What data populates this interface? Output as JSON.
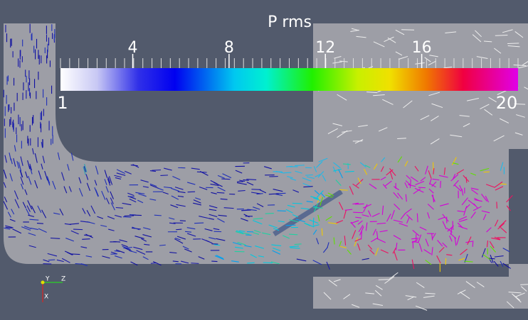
{
  "colorbar": {
    "title": "P rms",
    "min": 1,
    "max": 20,
    "ticks": [
      4,
      8,
      12,
      16
    ]
  },
  "axes_triad": {
    "y": "Y",
    "z": "Z",
    "x": "X"
  }
}
